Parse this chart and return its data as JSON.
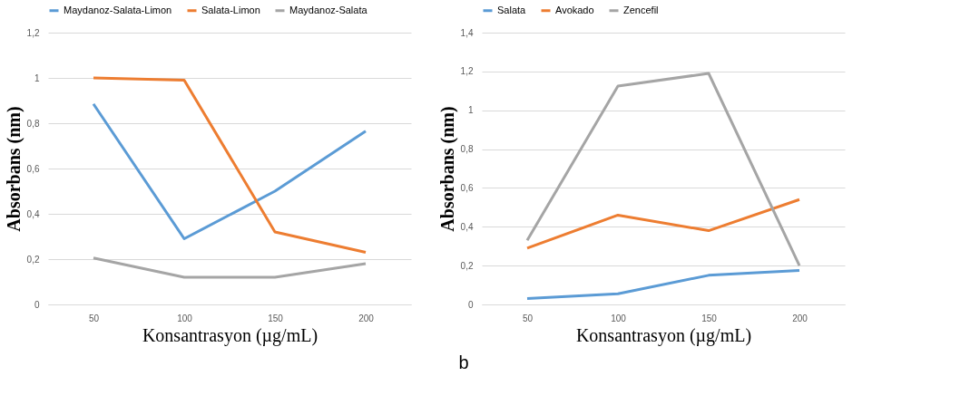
{
  "chart_data": [
    {
      "type": "line",
      "xlabel": "Konsantrasyon (µg/mL)",
      "ylabel": "Absorbans (nm)",
      "categories": [
        "50",
        "100",
        "150",
        "200"
      ],
      "series": [
        {
          "name": "Maydanoz-Salata-Limon",
          "color": "#5b9bd5",
          "values": [
            0.885,
            0.29,
            0.5,
            0.765
          ]
        },
        {
          "name": "Salata-Limon",
          "color": "#ed7d31",
          "values": [
            1.0,
            0.99,
            0.32,
            0.23
          ]
        },
        {
          "name": "Maydanoz-Salata",
          "color": "#a5a5a5",
          "values": [
            0.205,
            0.12,
            0.12,
            0.18
          ]
        }
      ],
      "ylim": [
        0,
        1.2
      ],
      "yticks": [
        0,
        {
          "value": 0.2,
          "label": "0,2"
        },
        {
          "value": 0.4,
          "label": "0,4"
        },
        {
          "value": 0.6,
          "label": "0,6"
        },
        {
          "value": 0.8,
          "label": "0,8"
        },
        1,
        {
          "value": 1.2,
          "label": "1,2"
        }
      ],
      "grid": "y",
      "legend": "top",
      "marker": "none",
      "line_style": "solid"
    },
    {
      "type": "line",
      "xlabel": "Konsantrasyon (µg/mL)",
      "ylabel": "Absorbans (nm)",
      "categories": [
        "50",
        "100",
        "150",
        "200"
      ],
      "series": [
        {
          "name": "Salata",
          "color": "#5b9bd5",
          "values": [
            0.03,
            0.055,
            0.15,
            0.175
          ]
        },
        {
          "name": "Avokado",
          "color": "#ed7d31",
          "values": [
            0.29,
            0.46,
            0.38,
            0.54
          ]
        },
        {
          "name": "Zencefil",
          "color": "#a5a5a5",
          "values": [
            0.33,
            1.125,
            1.19,
            0.2
          ]
        }
      ],
      "ylim": [
        0,
        1.4
      ],
      "yticks": [
        0,
        {
          "value": 0.2,
          "label": "0,2"
        },
        {
          "value": 0.4,
          "label": "0,4"
        },
        {
          "value": 0.6,
          "label": "0,6"
        },
        {
          "value": 0.8,
          "label": "0,8"
        },
        1,
        {
          "value": 1.2,
          "label": "1,2"
        },
        {
          "value": 1.4,
          "label": "1,4"
        }
      ],
      "grid": "y",
      "legend": "top",
      "marker": "none",
      "line_style": "solid",
      "annotations": [
        "b"
      ]
    }
  ]
}
